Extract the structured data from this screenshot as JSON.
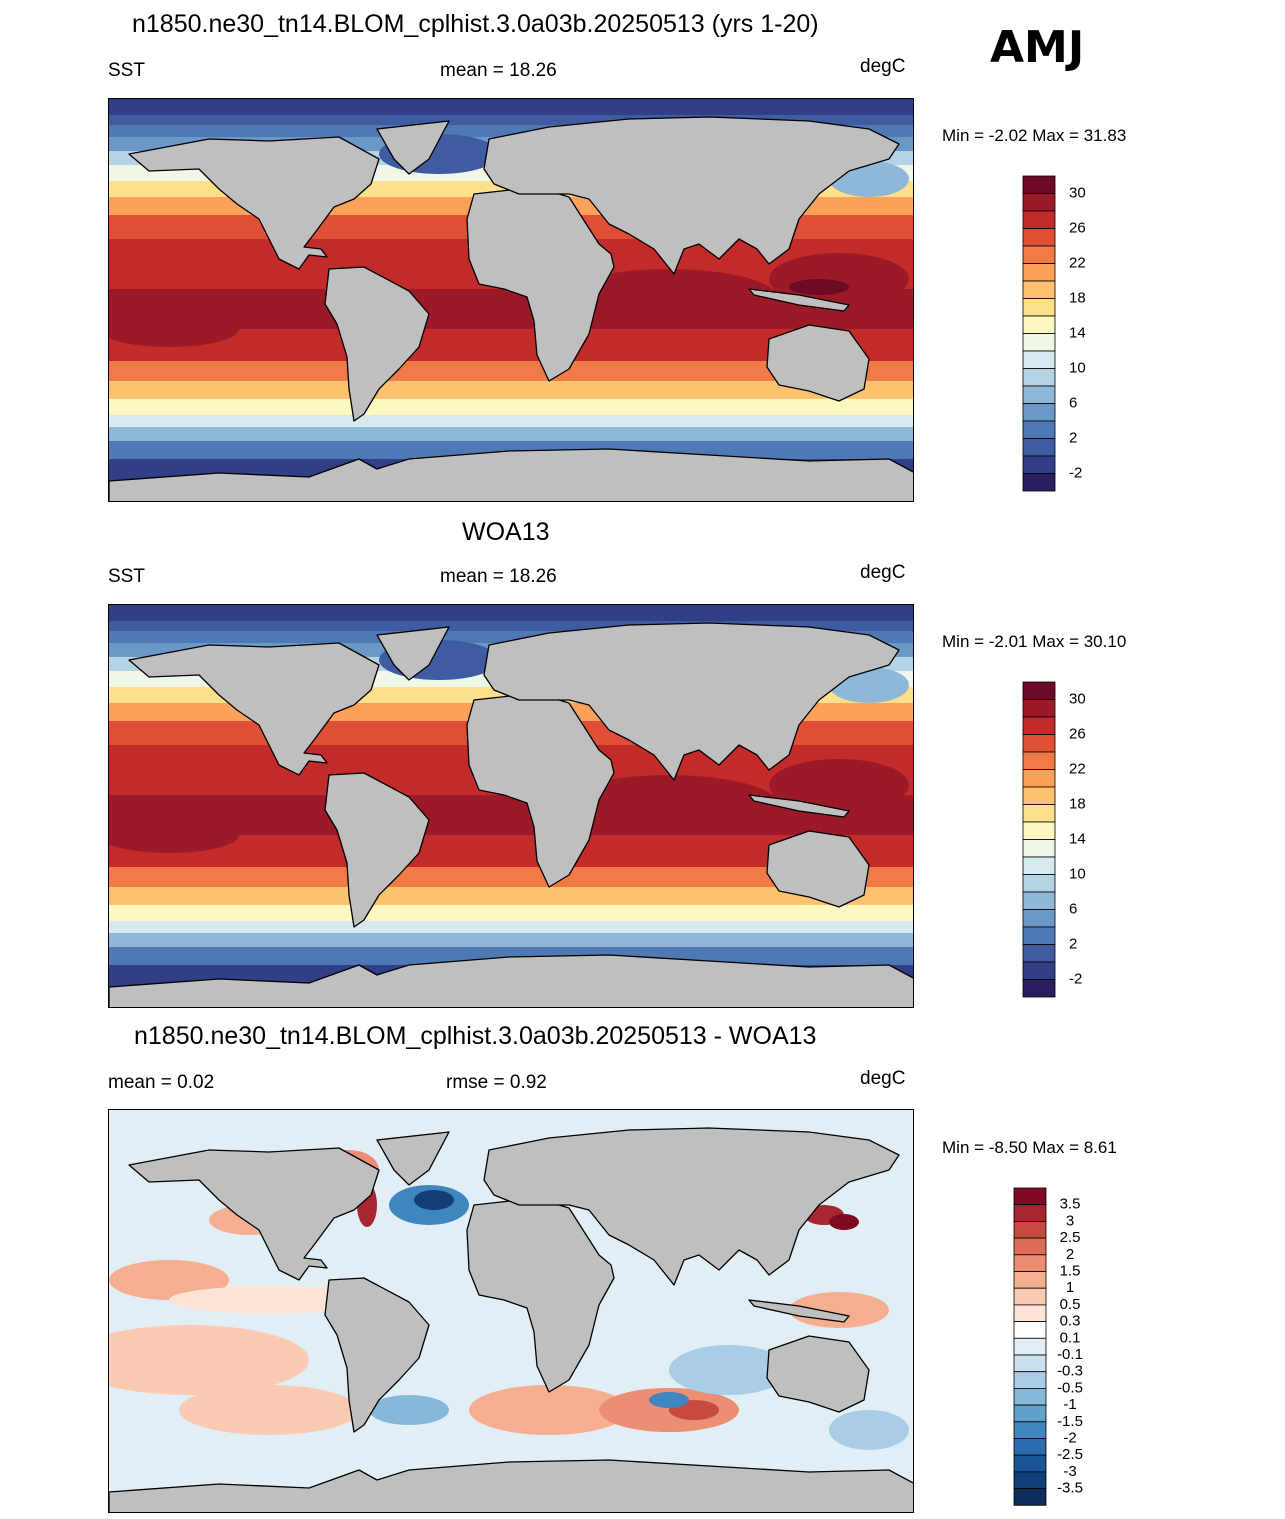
{
  "season": "AMJ",
  "colors": {
    "land": "#bfbfbf",
    "sst_scale": [
      "#2a1f5e",
      "#313f86",
      "#3f5ca2",
      "#4f79b5",
      "#6b98c7",
      "#8fb8d8",
      "#b4d4e6",
      "#d6e9ef",
      "#f0f6e8",
      "#fdf8c1",
      "#fee08b",
      "#fdc270",
      "#fca159",
      "#f07b47",
      "#de4f35",
      "#c22b2a",
      "#9c1a28",
      "#6d0a26"
    ],
    "diff_scale": [
      "#0b2e5c",
      "#123f78",
      "#1a5595",
      "#2a6cae",
      "#3f85c0",
      "#62a0ce",
      "#86b8da",
      "#a9cde6",
      "#c9e0ef",
      "#e2eef6",
      "#ffffff",
      "#fde4d6",
      "#fbcab2",
      "#f6ae90",
      "#ec8e74",
      "#de6c59",
      "#c74942",
      "#a8262f",
      "#7e0b22"
    ]
  },
  "panels": [
    {
      "title": "n1850.ne30_tn14.BLOM_cplhist.3.0a03b.20250513 (yrs 1-20)",
      "left_label": "SST",
      "center_label": "mean =  18.26",
      "units": "degC",
      "minmax": "Min =  -2.02 Max =  31.83",
      "colorbar_ticks": [
        "30",
        "26",
        "22",
        "18",
        "14",
        "10",
        "6",
        "2",
        "-2"
      ]
    },
    {
      "title": "WOA13",
      "left_label": "SST",
      "center_label": "mean =  18.26",
      "units": "degC",
      "minmax": "Min =  -2.01 Max =  30.10",
      "colorbar_ticks": [
        "30",
        "26",
        "22",
        "18",
        "14",
        "10",
        "6",
        "2",
        "-2"
      ]
    },
    {
      "title": "n1850.ne30_tn14.BLOM_cplhist.3.0a03b.20250513 - WOA13",
      "left_label": "mean =   0.02",
      "center_label": "rmse =   0.92",
      "units": "degC",
      "minmax": "Min =  -8.50 Max =   8.61",
      "colorbar_ticks": [
        "3.5",
        "3",
        "2.5",
        "2",
        "1.5",
        "1",
        "0.5",
        "0.3",
        "0.1",
        "-0.1",
        "-0.3",
        "-0.5",
        "-1",
        "-1.5",
        "-2",
        "-2.5",
        "-3",
        "-3.5"
      ]
    }
  ]
}
